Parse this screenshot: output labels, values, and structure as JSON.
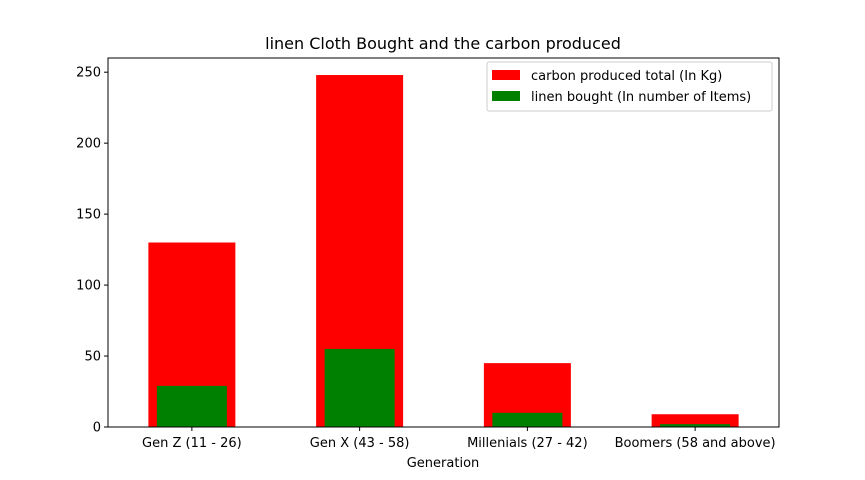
{
  "chart_data": {
    "type": "bar",
    "title": "linen Cloth Bought and the carbon produced",
    "xlabel": "Generation",
    "ylabel": "",
    "categories": [
      "Gen Z (11 - 26)",
      "Gen X (43 - 58)",
      "Millenials (27 - 42)",
      "Boomers (58 and above)"
    ],
    "series": [
      {
        "name": "carbon produced total (In Kg)",
        "values": [
          130,
          248,
          45,
          9
        ],
        "color": "#ff0000"
      },
      {
        "name": "linen bought (In number of Items)",
        "values": [
          29,
          55,
          10,
          2
        ],
        "color": "#008000"
      }
    ],
    "ylim": [
      0,
      260
    ],
    "yticks": [
      0,
      50,
      100,
      150,
      200,
      250
    ],
    "ytick_labels": [
      "0",
      "50",
      "100",
      "150",
      "200",
      "250"
    ],
    "grid": false,
    "legend_position": "top-right",
    "overlaid_bars": true
  }
}
